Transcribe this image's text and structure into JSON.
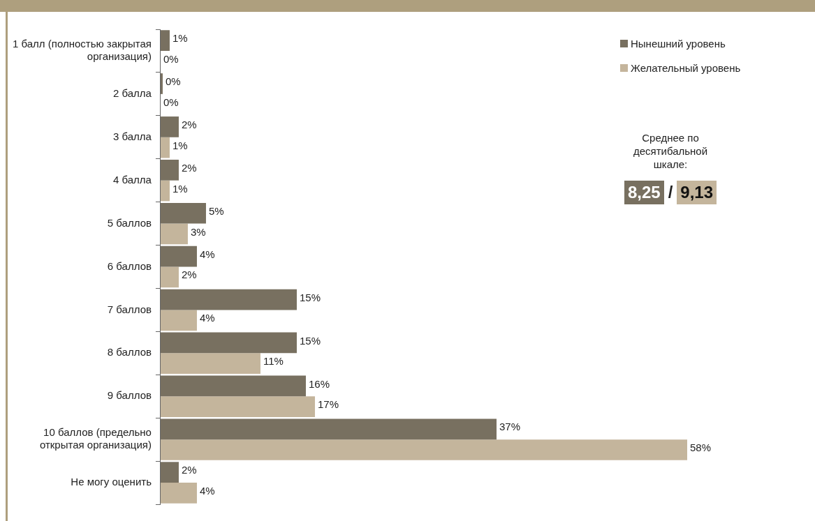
{
  "chart_data": {
    "type": "bar",
    "orientation": "horizontal",
    "categories": [
      "1 балл (полностью закрытая организация)",
      "2 балла",
      "3 балла",
      "4 балла",
      "5 баллов",
      "6 баллов",
      "7 баллов",
      "8 баллов",
      "9 баллов",
      "10 баллов (предельно открытая организация)",
      "Не могу оценить"
    ],
    "series": [
      {
        "name": "Нынешний уровень",
        "color": "#787060",
        "values": [
          1,
          0,
          2,
          2,
          5,
          4,
          15,
          15,
          16,
          37,
          2
        ],
        "value_labels": [
          "1%",
          "0%",
          "2%",
          "2%",
          "5%",
          "4%",
          "15%",
          "15%",
          "16%",
          "37%",
          "2%"
        ]
      },
      {
        "name": "Желательный уровень",
        "color": "#c4b59c",
        "values": [
          0,
          0,
          1,
          1,
          3,
          2,
          4,
          11,
          17,
          58,
          4
        ],
        "value_labels": [
          "0%",
          "0%",
          "1%",
          "1%",
          "3%",
          "2%",
          "4%",
          "11%",
          "17%",
          "58%",
          "4%"
        ]
      }
    ],
    "tick_labels": "y",
    "legend": "top right",
    "annotations": [
      "Среднее по десятибальной шкале:",
      "8,25",
      "/",
      "9,13"
    ]
  }
}
